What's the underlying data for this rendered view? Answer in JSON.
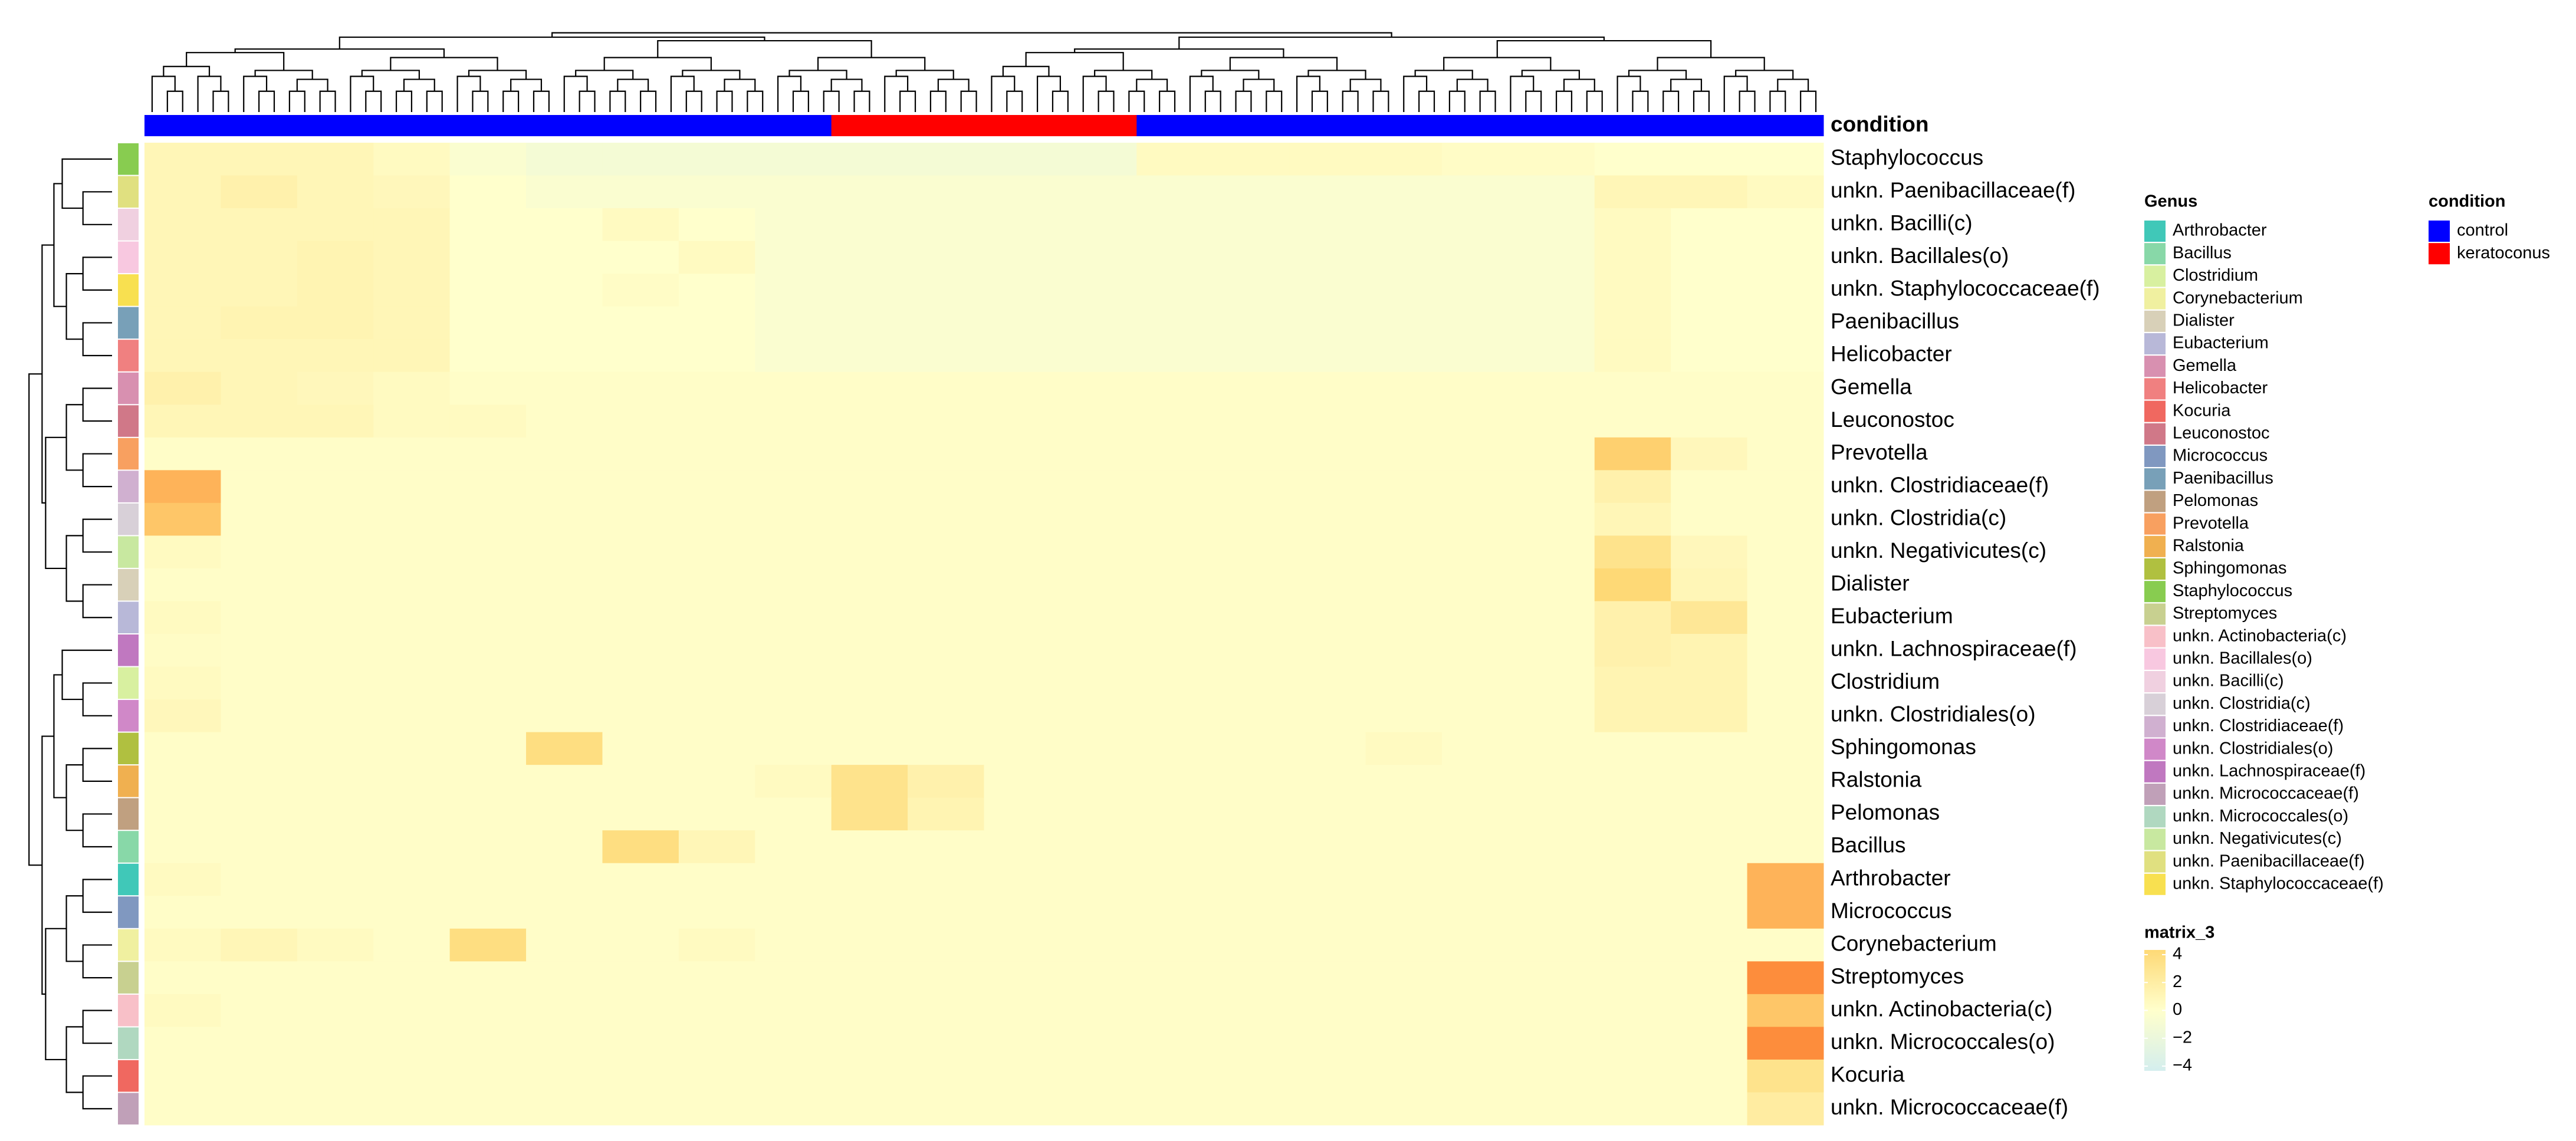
{
  "chart_data": {
    "type": "heatmap",
    "condition_title": "condition",
    "columns_condition": [
      "control",
      "control",
      "control",
      "control",
      "control",
      "control",
      "control",
      "control",
      "control",
      "keratoconus",
      "keratoconus",
      "keratoconus",
      "keratoconus",
      "control",
      "control",
      "control",
      "control",
      "control",
      "control",
      "control",
      "control",
      "control"
    ],
    "series": [
      {
        "name": "Staphylococcus",
        "values": [
          1,
          1,
          1,
          0.5,
          -0.5,
          -1,
          -1,
          -1,
          -1,
          -1,
          -1,
          -1,
          -1,
          0.5,
          0.5,
          0.5,
          0.5,
          0.3,
          0.3,
          0,
          0,
          0
        ]
      },
      {
        "name": "unkn. Paenibacillaceae(f)",
        "values": [
          1,
          1.5,
          1,
          0.8,
          0,
          -0.5,
          -0.5,
          -0.5,
          -0.5,
          -0.5,
          -0.5,
          -0.5,
          -0.5,
          -0.5,
          -0.5,
          -0.5,
          -0.5,
          -0.5,
          -0.5,
          1,
          1,
          0.5
        ]
      },
      {
        "name": "unkn. Bacilli(c)",
        "values": [
          1,
          1,
          1,
          1,
          0,
          0,
          0.5,
          0,
          -0.5,
          -0.5,
          -0.5,
          -0.5,
          -0.5,
          -0.5,
          -0.5,
          -0.5,
          -0.5,
          -0.5,
          -0.5,
          0.5,
          0,
          0
        ]
      },
      {
        "name": "unkn. Bacillales(o)",
        "values": [
          1,
          1,
          1.2,
          1,
          0,
          0,
          0,
          0.5,
          -0.5,
          -0.5,
          -0.5,
          -0.5,
          -0.5,
          -0.5,
          -0.5,
          -0.5,
          -0.5,
          -0.5,
          -0.5,
          0.5,
          0,
          0
        ]
      },
      {
        "name": "unkn. Staphylococcaceae(f)",
        "values": [
          1,
          1,
          1.2,
          1,
          0,
          0,
          0.3,
          0,
          -0.5,
          -0.5,
          -0.5,
          -0.5,
          -0.5,
          -0.5,
          -0.5,
          -0.5,
          -0.5,
          -0.5,
          -0.5,
          0.5,
          0,
          0
        ]
      },
      {
        "name": "Paenibacillus",
        "values": [
          1,
          1.2,
          1.2,
          1,
          0,
          0,
          0,
          0,
          -0.5,
          -0.5,
          -0.5,
          -0.5,
          -0.5,
          -0.5,
          -0.5,
          -0.5,
          -0.5,
          -0.5,
          -0.5,
          0.5,
          0,
          0
        ]
      },
      {
        "name": "Helicobacter",
        "values": [
          1,
          1,
          1,
          1,
          0,
          0,
          0,
          0,
          -0.5,
          -0.5,
          -0.5,
          -0.5,
          -0.5,
          -0.5,
          -0.5,
          -0.5,
          -0.5,
          -0.5,
          -0.5,
          0.5,
          0,
          0
        ]
      },
      {
        "name": "Gemella",
        "values": [
          1.5,
          1,
          0.8,
          0.5,
          0.2,
          0.2,
          0.2,
          0.2,
          0.2,
          0.2,
          0.2,
          0.2,
          0.2,
          0.2,
          0.2,
          0.2,
          0.2,
          0.2,
          0.2,
          0.2,
          0.2,
          0.2
        ]
      },
      {
        "name": "Leuconostoc",
        "values": [
          1,
          1,
          1,
          0.5,
          0.5,
          0.2,
          0.2,
          0.2,
          0.2,
          0.2,
          0.2,
          0.2,
          0.2,
          0.2,
          0.2,
          0.2,
          0.2,
          0.2,
          0.2,
          0.2,
          0.2,
          0.2
        ]
      },
      {
        "name": "Prevotella",
        "values": [
          0.2,
          0.2,
          0.2,
          0.2,
          0.2,
          0.2,
          0.2,
          0.2,
          0.2,
          0.2,
          0.2,
          0.2,
          0.2,
          0.2,
          0.2,
          0.2,
          0.2,
          0.2,
          0.2,
          4.5,
          0.8,
          0.2
        ]
      },
      {
        "name": "unkn. Clostridiaceae(f)",
        "values": [
          6,
          0.2,
          0.2,
          0.2,
          0.2,
          0.2,
          0.2,
          0.2,
          0.2,
          0.2,
          0.2,
          0.2,
          0.2,
          0.2,
          0.2,
          0.2,
          0.2,
          0.2,
          0.2,
          1.5,
          0.2,
          0.2
        ]
      },
      {
        "name": "unkn. Clostridia(c)",
        "values": [
          5,
          0.2,
          0.2,
          0.2,
          0.2,
          0.2,
          0.2,
          0.2,
          0.2,
          0.2,
          0.2,
          0.2,
          0.2,
          0.2,
          0.2,
          0.2,
          0.2,
          0.2,
          0.2,
          1,
          0.2,
          0.2
        ]
      },
      {
        "name": "unkn. Negativicutes(c)",
        "values": [
          0.5,
          0.2,
          0.2,
          0.2,
          0.2,
          0.2,
          0.2,
          0.2,
          0.2,
          0.2,
          0.2,
          0.2,
          0.2,
          0.2,
          0.2,
          0.2,
          0.2,
          0.2,
          0.2,
          3,
          0.8,
          0.2
        ]
      },
      {
        "name": "Dialister",
        "values": [
          0.2,
          0.2,
          0.2,
          0.2,
          0.2,
          0.2,
          0.2,
          0.2,
          0.2,
          0.2,
          0.2,
          0.2,
          0.2,
          0.2,
          0.2,
          0.2,
          0.2,
          0.2,
          0.2,
          4,
          1,
          0.2
        ]
      },
      {
        "name": "Eubacterium",
        "values": [
          0.5,
          0.2,
          0.2,
          0.2,
          0.2,
          0.2,
          0.2,
          0.2,
          0.2,
          0.2,
          0.2,
          0.2,
          0.2,
          0.2,
          0.2,
          0.2,
          0.2,
          0.2,
          0.2,
          1.5,
          2.5,
          0.2
        ]
      },
      {
        "name": "unkn. Lachnospiraceae(f)",
        "values": [
          0.3,
          0.2,
          0.2,
          0.2,
          0.2,
          0.2,
          0.2,
          0.2,
          0.2,
          0.2,
          0.2,
          0.2,
          0.2,
          0.2,
          0.2,
          0.2,
          0.2,
          0.2,
          0.2,
          1.5,
          1.2,
          0.2
        ]
      },
      {
        "name": "Clostridium",
        "values": [
          0.5,
          0.2,
          0.2,
          0.2,
          0.2,
          0.2,
          0.2,
          0.2,
          0.2,
          0.2,
          0.2,
          0.2,
          0.2,
          0.2,
          0.2,
          0.2,
          0.2,
          0.2,
          0.2,
          1.2,
          1.2,
          0.2
        ]
      },
      {
        "name": "unkn. Clostridiales(o)",
        "values": [
          0.8,
          0.2,
          0.2,
          0.2,
          0.2,
          0.2,
          0.2,
          0.2,
          0.2,
          0.2,
          0.2,
          0.2,
          0.2,
          0.2,
          0.2,
          0.2,
          0.2,
          0.2,
          0.2,
          1.2,
          1.2,
          0.2
        ]
      },
      {
        "name": "Sphingomonas",
        "values": [
          0.2,
          0.2,
          0.2,
          0.2,
          0.2,
          3.5,
          0.2,
          0.2,
          0.2,
          0.2,
          0.2,
          0.2,
          0.2,
          0.2,
          0.2,
          0.2,
          0.5,
          0.2,
          0.2,
          0.2,
          0.2,
          0.2
        ]
      },
      {
        "name": "Ralstonia",
        "values": [
          0.2,
          0.2,
          0.2,
          0.2,
          0.2,
          0.2,
          0.2,
          0.2,
          0.5,
          3,
          1.5,
          0.2,
          0.2,
          0.2,
          0.2,
          0.2,
          0.2,
          0.2,
          0.2,
          0.2,
          0.2,
          0.2
        ]
      },
      {
        "name": "Pelomonas",
        "values": [
          0.2,
          0.2,
          0.2,
          0.2,
          0.2,
          0.2,
          0.2,
          0.2,
          0.2,
          3,
          1.2,
          0.2,
          0.2,
          0.2,
          0.2,
          0.2,
          0.2,
          0.2,
          0.2,
          0.2,
          0.2,
          0.2
        ]
      },
      {
        "name": "Bacillus",
        "values": [
          0.2,
          0.2,
          0.2,
          0.2,
          0.2,
          0.2,
          3.5,
          1,
          0.2,
          0.2,
          0.2,
          0.2,
          0.2,
          0.2,
          0.2,
          0.2,
          0.2,
          0.2,
          0.2,
          0.2,
          0.2,
          0.2
        ]
      },
      {
        "name": "Arthrobacter",
        "values": [
          0.5,
          0.2,
          0.2,
          0.2,
          0.2,
          0.2,
          0.2,
          0.2,
          0.2,
          0.2,
          0.2,
          0.2,
          0.2,
          0.2,
          0.2,
          0.2,
          0.2,
          0.2,
          0.2,
          0.2,
          0.2,
          6
        ]
      },
      {
        "name": "Micrococcus",
        "values": [
          0.2,
          0.2,
          0.2,
          0.2,
          0.2,
          0.2,
          0.2,
          0.2,
          0.2,
          0.2,
          0.2,
          0.2,
          0.2,
          0.2,
          0.2,
          0.2,
          0.2,
          0.2,
          0.2,
          0.2,
          0.2,
          6
        ]
      },
      {
        "name": "Corynebacterium",
        "values": [
          0.5,
          1,
          0.5,
          0.2,
          3.5,
          0.2,
          0.2,
          0.5,
          0.2,
          0.2,
          0.2,
          0.2,
          0.2,
          0.2,
          0.2,
          0.2,
          0.2,
          0.2,
          0.2,
          0.2,
          0.2,
          0.2
        ]
      },
      {
        "name": "Streptomyces",
        "values": [
          0.2,
          0.2,
          0.2,
          0.2,
          0.2,
          0.2,
          0.2,
          0.2,
          0.2,
          0.2,
          0.2,
          0.2,
          0.2,
          0.2,
          0.2,
          0.2,
          0.2,
          0.2,
          0.2,
          0.2,
          0.2,
          8
        ]
      },
      {
        "name": "unkn. Actinobacteria(c)",
        "values": [
          0.5,
          0.2,
          0.2,
          0.2,
          0.2,
          0.2,
          0.2,
          0.2,
          0.2,
          0.2,
          0.2,
          0.2,
          0.2,
          0.2,
          0.2,
          0.2,
          0.2,
          0.2,
          0.2,
          0.2,
          0.2,
          5
        ]
      },
      {
        "name": "unkn. Micrococcales(o)",
        "values": [
          0.2,
          0.2,
          0.2,
          0.2,
          0.2,
          0.2,
          0.2,
          0.2,
          0.2,
          0.2,
          0.2,
          0.2,
          0.2,
          0.2,
          0.2,
          0.2,
          0.2,
          0.2,
          0.2,
          0.2,
          0.2,
          8
        ]
      },
      {
        "name": "Kocuria",
        "values": [
          0.2,
          0.2,
          0.2,
          0.2,
          0.2,
          0.2,
          0.2,
          0.2,
          0.2,
          0.2,
          0.2,
          0.2,
          0.2,
          0.2,
          0.2,
          0.2,
          0.2,
          0.2,
          0.2,
          0.2,
          0.2,
          3
        ]
      },
      {
        "name": "unkn. Micrococcaceae(f)",
        "values": [
          0.2,
          0.2,
          0.2,
          0.2,
          0.2,
          0.2,
          0.2,
          0.2,
          0.2,
          0.2,
          0.2,
          0.2,
          0.2,
          0.2,
          0.2,
          0.2,
          0.2,
          0.2,
          0.2,
          0.2,
          0.2,
          2
        ]
      }
    ],
    "genus_legend": {
      "title": "Genus",
      "items": [
        {
          "name": "Arthrobacter",
          "color": "#40c8b8"
        },
        {
          "name": "Bacillus",
          "color": "#88d8a8"
        },
        {
          "name": "Clostridium",
          "color": "#d8f0a0"
        },
        {
          "name": "Corynebacterium",
          "color": "#f0f0a0"
        },
        {
          "name": "Dialister",
          "color": "#d8d0b8"
        },
        {
          "name": "Eubacterium",
          "color": "#b8b8d8"
        },
        {
          "name": "Gemella",
          "color": "#d890b0"
        },
        {
          "name": "Helicobacter",
          "color": "#f08080"
        },
        {
          "name": "Kocuria",
          "color": "#f06860"
        },
        {
          "name": "Leuconostoc",
          "color": "#d07888"
        },
        {
          "name": "Micrococcus",
          "color": "#8098c0"
        },
        {
          "name": "Paenibacillus",
          "color": "#78a0b8"
        },
        {
          "name": "Pelomonas",
          "color": "#c0a080"
        },
        {
          "name": "Prevotella",
          "color": "#f8a060"
        },
        {
          "name": "Ralstonia",
          "color": "#f0b050"
        },
        {
          "name": "Sphingomonas",
          "color": "#b0c040"
        },
        {
          "name": "Staphylococcus",
          "color": "#88cc50"
        },
        {
          "name": "Streptomyces",
          "color": "#c8d090"
        },
        {
          "name": "unkn. Actinobacteria(c)",
          "color": "#f8c0c8"
        },
        {
          "name": "unkn. Bacillales(o)",
          "color": "#f8c8e0"
        },
        {
          "name": "unkn. Bacilli(c)",
          "color": "#f0d0e0"
        },
        {
          "name": "unkn. Clostridia(c)",
          "color": "#d8d0d8"
        },
        {
          "name": "unkn. Clostridiaceae(f)",
          "color": "#d0b0d0"
        },
        {
          "name": "unkn. Clostridiales(o)",
          "color": "#d088c8"
        },
        {
          "name": "unkn. Lachnospiraceae(f)",
          "color": "#c078c0"
        },
        {
          "name": "unkn. Micrococcaceae(f)",
          "color": "#c0a0b8"
        },
        {
          "name": "unkn. Micrococcales(o)",
          "color": "#b0d8c0"
        },
        {
          "name": "unkn. Negativicutes(c)",
          "color": "#c8e8a0"
        },
        {
          "name": "unkn. Paenibacillaceae(f)",
          "color": "#e0e080"
        },
        {
          "name": "unkn. Staphylococcaceae(f)",
          "color": "#f8e050"
        }
      ]
    },
    "condition_legend": {
      "title": "condition",
      "items": [
        {
          "name": "control",
          "color": "#0000ff"
        },
        {
          "name": "keratoconus",
          "color": "#ff0000"
        }
      ]
    },
    "color_legend": {
      "title": "matrix_3",
      "clim": [
        -4,
        4
      ],
      "colors": [
        "#d4eeee",
        "#ffffcc",
        "#fed976"
      ],
      "ticks": [
        4,
        2,
        0,
        {
          "value": -2,
          "label": "−2"
        },
        {
          "value": -4,
          "label": "−4"
        }
      ]
    }
  }
}
